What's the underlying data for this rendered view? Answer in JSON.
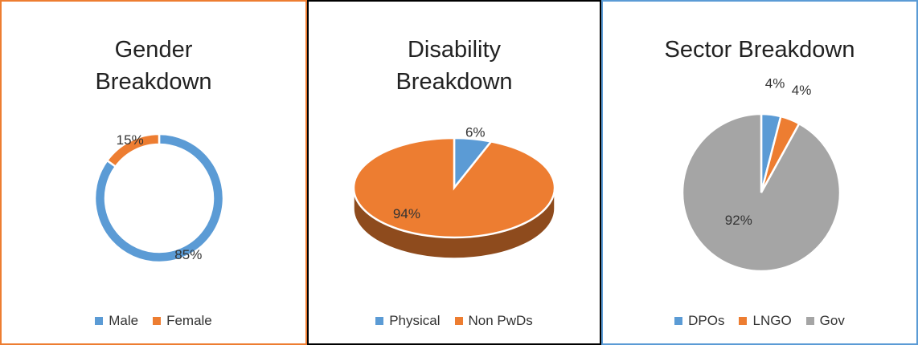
{
  "chart_data": [
    {
      "type": "donut",
      "title": "Gender Breakdown",
      "categories": [
        "Male",
        "Female"
      ],
      "values": [
        85,
        15
      ],
      "value_labels": [
        "85%",
        "15%"
      ],
      "colors": [
        "#5B9BD5",
        "#ED7D31"
      ]
    },
    {
      "type": "pie3d",
      "title": "Disability Breakdown",
      "categories": [
        "Physical",
        "Non PwDs"
      ],
      "values": [
        6,
        94
      ],
      "value_labels": [
        "6%",
        "94%"
      ],
      "colors": [
        "#5B9BD5",
        "#ED7D31"
      ]
    },
    {
      "type": "pie",
      "title": "Sector Breakdown",
      "categories": [
        "DPOs",
        "LNGO",
        "Gov"
      ],
      "values": [
        4,
        4,
        92
      ],
      "value_labels": [
        "4%",
        "4%",
        "92%"
      ],
      "colors": [
        "#5B9BD5",
        "#ED7D31",
        "#A5A5A5"
      ]
    }
  ]
}
